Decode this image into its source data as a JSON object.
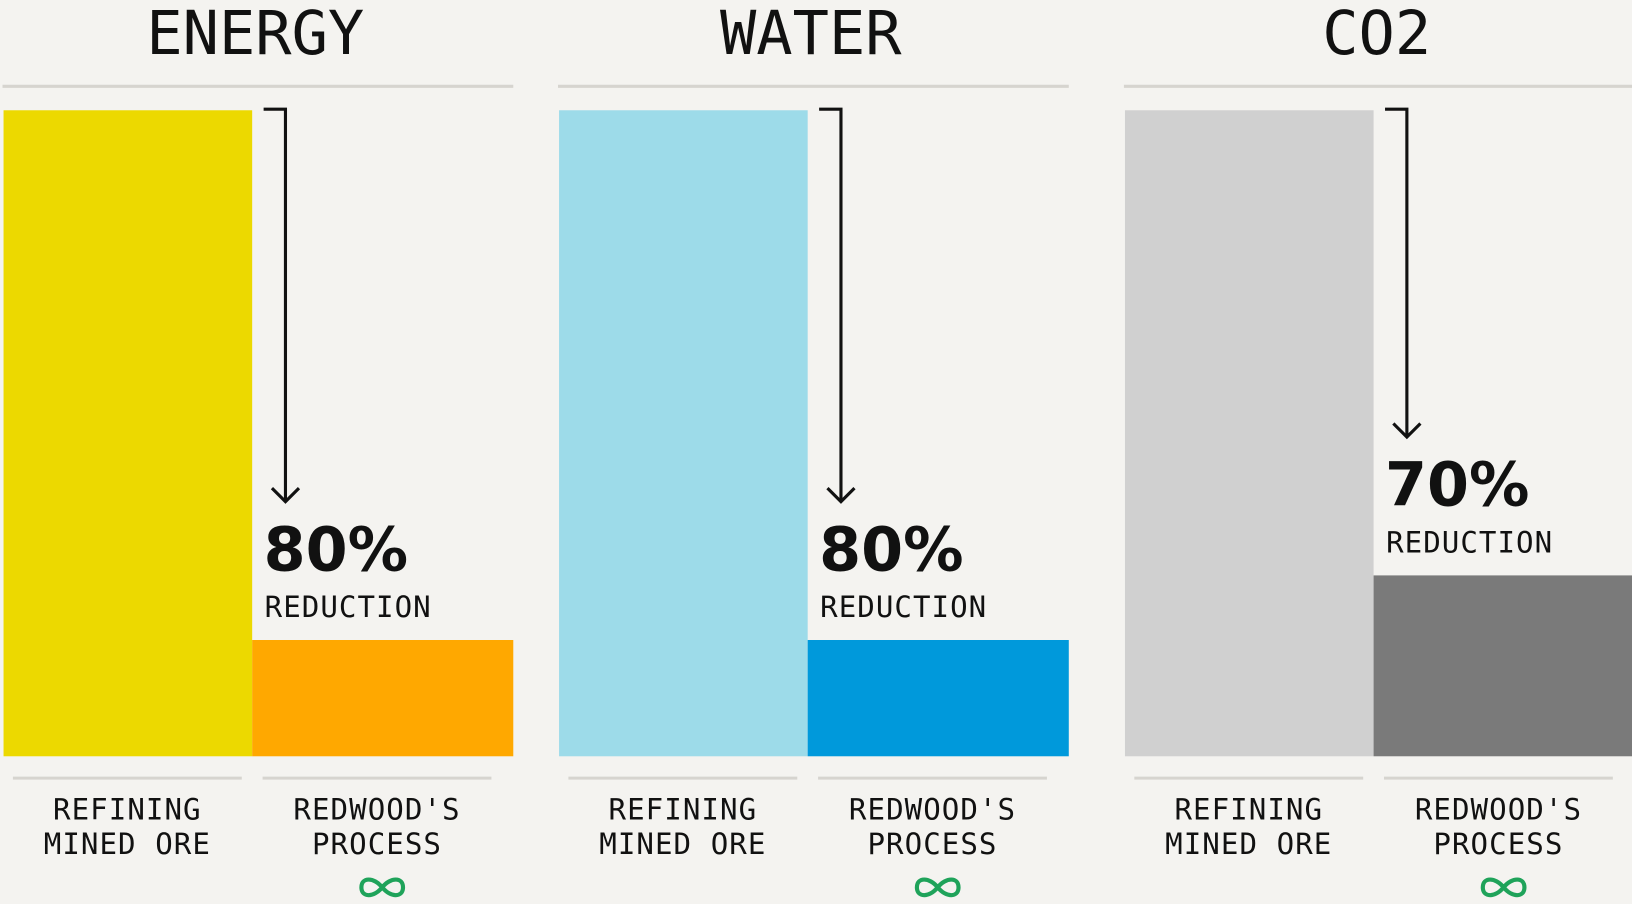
{
  "chart_data": [
    {
      "type": "bar",
      "title": "ENERGY",
      "categories": [
        "REFINING MINED ORE",
        "REDWOOD'S PROCESS"
      ],
      "values": [
        100,
        18
      ],
      "colors": [
        "#ecd900",
        "#ffa800"
      ],
      "annotation": [
        "80%",
        "REDUCTION"
      ]
    },
    {
      "type": "bar",
      "title": "WATER",
      "categories": [
        "REFINING MINED ORE",
        "REDWOOD'S PROCESS"
      ],
      "values": [
        100,
        18
      ],
      "colors": [
        "#9ddbe9",
        "#0099db"
      ],
      "annotation": [
        "80%",
        "REDUCTION"
      ]
    },
    {
      "type": "bar",
      "title": "CO2",
      "categories": [
        "REFINING MINED ORE",
        "REDWOOD'S PROCESS"
      ],
      "values": [
        100,
        28
      ],
      "colors": [
        "#d0d0d0",
        "#7a7a7a"
      ],
      "annotation": [
        "70%",
        "REDUCTION"
      ]
    }
  ]
}
